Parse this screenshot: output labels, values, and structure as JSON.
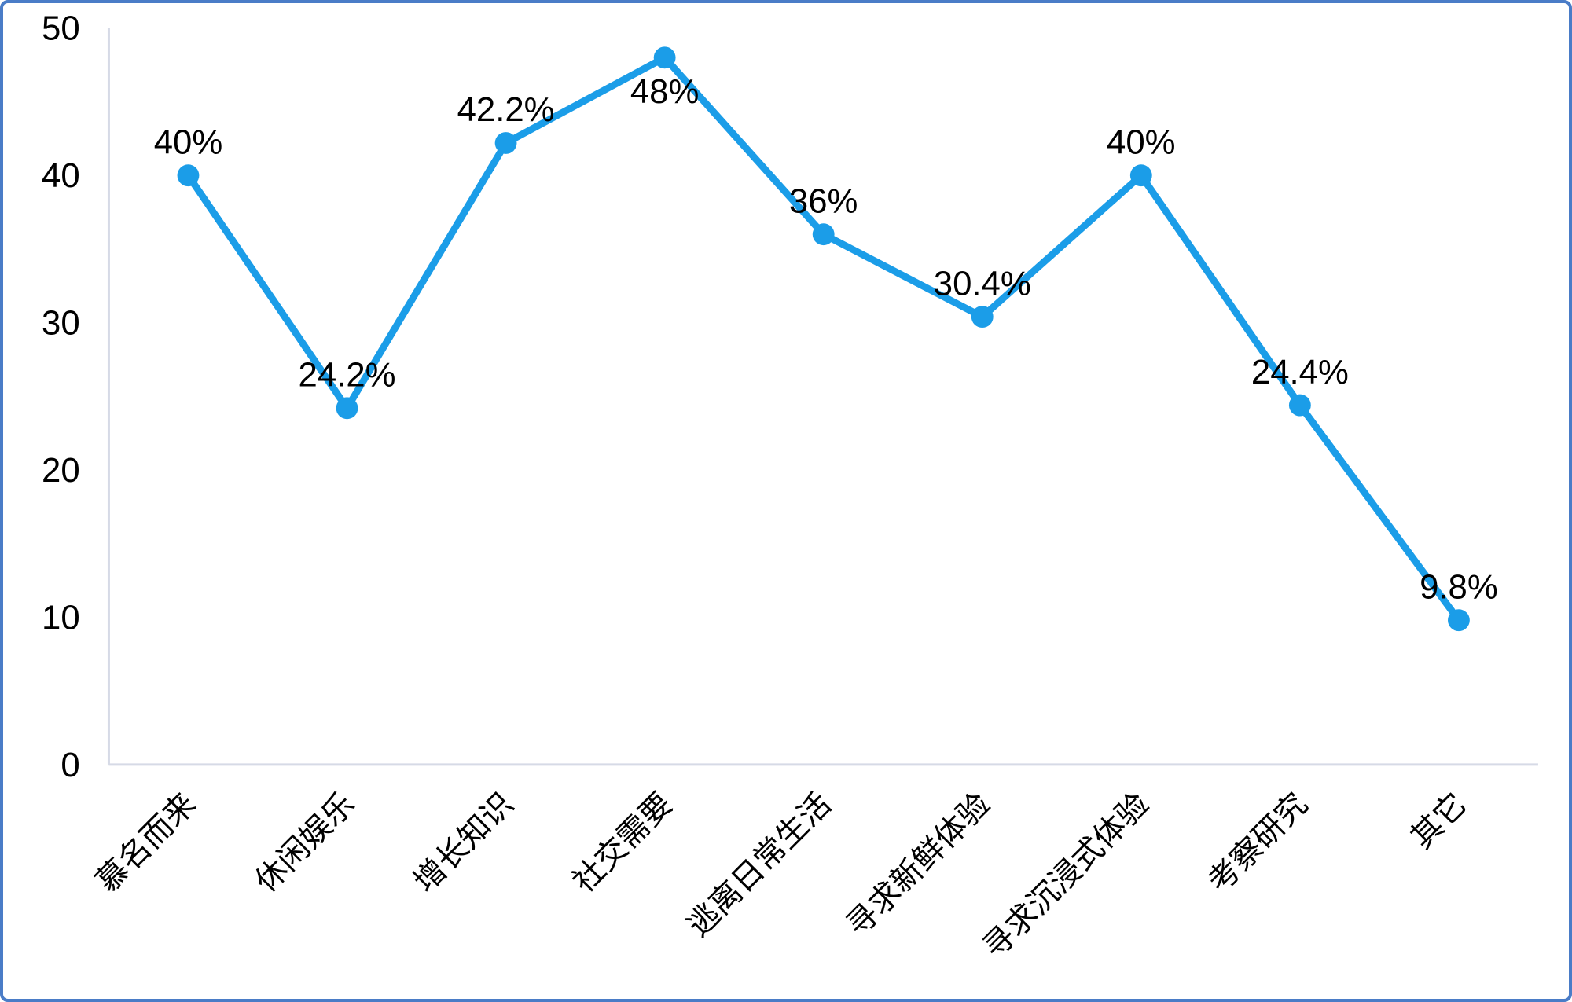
{
  "chart_data": {
    "type": "line",
    "title": "",
    "xlabel": "",
    "ylabel": "",
    "categories": [
      "慕名而来",
      "休闲娱乐",
      "增长知识",
      "社交需要",
      "逃离日常生活",
      "寻求新鲜体验",
      "寻求沉浸式体验",
      "考察研究",
      "其它"
    ],
    "values": [
      40,
      24.2,
      42.2,
      48,
      36,
      30.4,
      40,
      24.4,
      9.8
    ],
    "data_labels": [
      "40%",
      "24.2%",
      "42.2%",
      "48%",
      "36%",
      "30.4%",
      "40%",
      "24.4%",
      "9.8%"
    ],
    "data_label_positions": [
      "above",
      "above",
      "above",
      "below",
      "above",
      "above",
      "above",
      "above",
      "above"
    ],
    "y_ticks": [
      0,
      10,
      20,
      30,
      40,
      50
    ],
    "ylim": [
      0,
      50
    ],
    "grid": false,
    "legend_position": "none",
    "colors": {
      "series": "#1b9de8",
      "axis_line": "#d6dae6",
      "label_text": "#000000",
      "frame_border": "#4a7cc7",
      "background": "#ffffff"
    }
  }
}
